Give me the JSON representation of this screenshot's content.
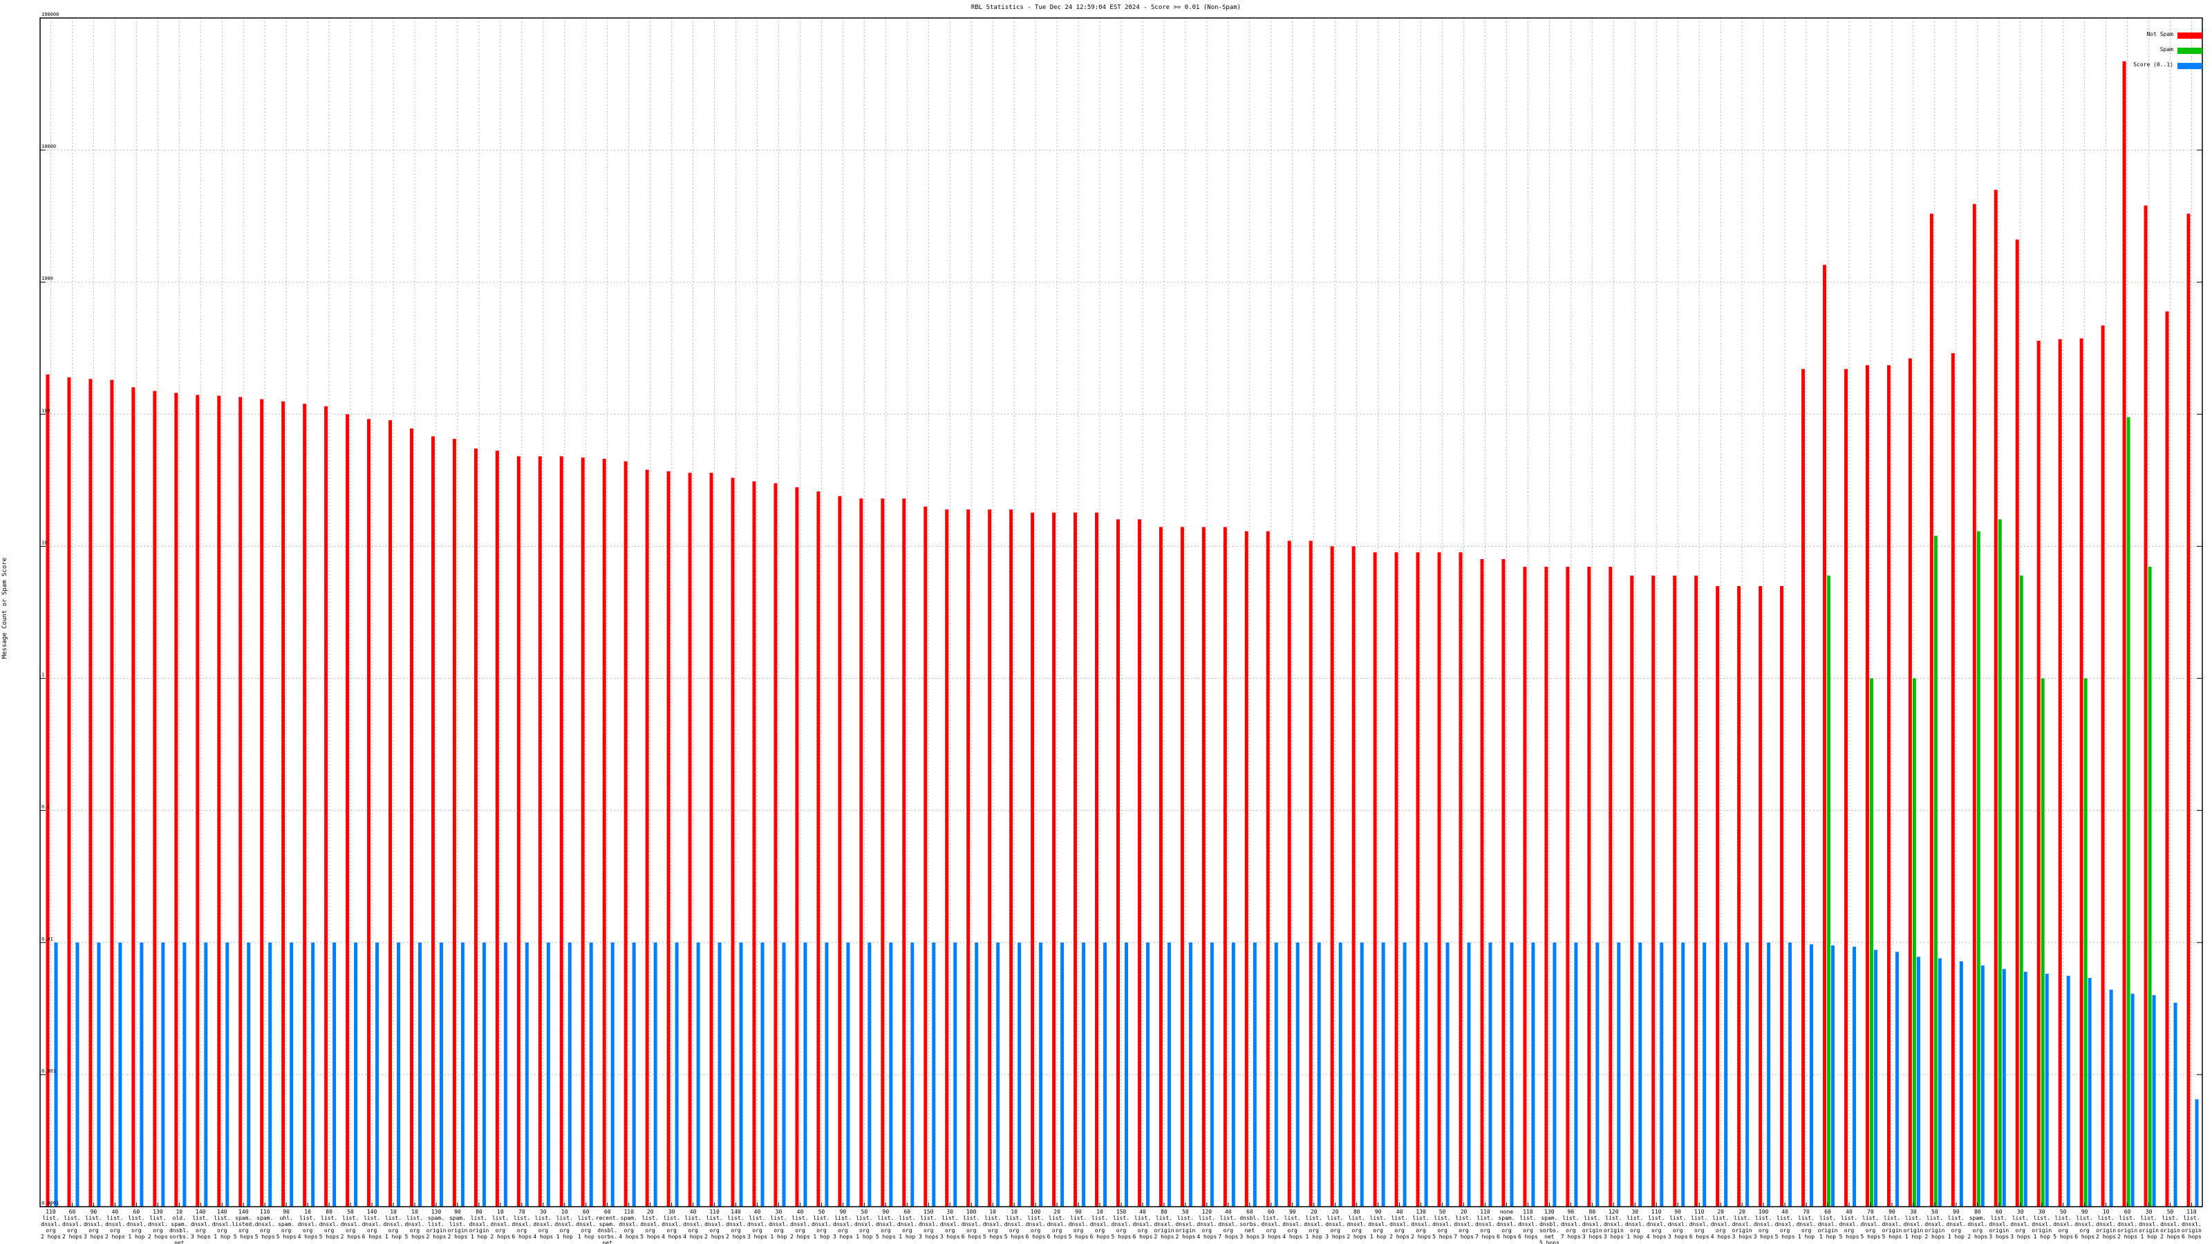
{
  "chart_data": {
    "type": "bar",
    "title": "RBL Statistics - Tue Dec 24 12:59:04 EST 2024 - Score >= 0.01 (Non-Spam)",
    "ylabel": "Message Count or Spam Score",
    "xlabel": "",
    "yscale": "log",
    "ylim": [
      0.0001,
      100000
    ],
    "yticks": [
      "0.0001",
      "0.001",
      "0.01",
      "0.1",
      "1",
      "10",
      "100",
      "1000",
      "10000",
      "100000"
    ],
    "legend_position": "top-right",
    "grid": true,
    "colors": {
      "not_spam": "#ff0000",
      "spam": "#00c000",
      "score": "#0080ff"
    },
    "series": [
      {
        "name": "Not Spam",
        "color": "#ff0000",
        "values": [
          200,
          190,
          185,
          182,
          160,
          150,
          145,
          140,
          138,
          135,
          130,
          125,
          120,
          115,
          100,
          92,
          90,
          78,
          68,
          65,
          55,
          53,
          48,
          48,
          48,
          47,
          46,
          44,
          38,
          37,
          36,
          36,
          33,
          31,
          30,
          28,
          26,
          24,
          23,
          23,
          23,
          20,
          19,
          19,
          19,
          19,
          18,
          18,
          18,
          18,
          16,
          16,
          14,
          14,
          14,
          14,
          13,
          13,
          11,
          11,
          10,
          10,
          9,
          9,
          9,
          9,
          9,
          8,
          8,
          7,
          7,
          7,
          7,
          7,
          6,
          6,
          6,
          6,
          5,
          5,
          5,
          5,
          220,
          1350,
          220,
          235,
          235,
          265,
          3300,
          290,
          3900,
          5000,
          2100,
          360,
          370,
          375,
          470,
          47000,
          3800,
          600,
          3300
        ]
      },
      {
        "name": "Spam",
        "color": "#00c000",
        "values": [
          0,
          0,
          0,
          0,
          0,
          0,
          0,
          0,
          0,
          0,
          0,
          0,
          0,
          0,
          0,
          0,
          0,
          0,
          0,
          0,
          0,
          0,
          0,
          0,
          0,
          0,
          0,
          0,
          0,
          0,
          0,
          0,
          0,
          0,
          0,
          0,
          0,
          0,
          0,
          0,
          0,
          0,
          0,
          0,
          0,
          0,
          0,
          0,
          0,
          0,
          0,
          0,
          0,
          0,
          0,
          0,
          0,
          0,
          0,
          0,
          0,
          0,
          0,
          0,
          0,
          0,
          0,
          0,
          0,
          0,
          0,
          0,
          0,
          0,
          0,
          0,
          0,
          0,
          0,
          0,
          0,
          0,
          0,
          6,
          0,
          1,
          0,
          1,
          12,
          0,
          13,
          16,
          6,
          1,
          0,
          1,
          0,
          95,
          7,
          0,
          0
        ]
      },
      {
        "name": "Score (0..1)",
        "color": "#0080ff",
        "values": [
          0.01,
          0.01,
          0.01,
          0.01,
          0.01,
          0.01,
          0.01,
          0.01,
          0.01,
          0.01,
          0.01,
          0.01,
          0.01,
          0.01,
          0.01,
          0.01,
          0.01,
          0.01,
          0.01,
          0.01,
          0.01,
          0.01,
          0.01,
          0.01,
          0.01,
          0.01,
          0.01,
          0.01,
          0.01,
          0.01,
          0.01,
          0.01,
          0.01,
          0.01,
          0.01,
          0.01,
          0.01,
          0.01,
          0.01,
          0.01,
          0.01,
          0.01,
          0.01,
          0.01,
          0.01,
          0.01,
          0.01,
          0.01,
          0.01,
          0.01,
          0.01,
          0.01,
          0.01,
          0.01,
          0.01,
          0.01,
          0.01,
          0.01,
          0.01,
          0.01,
          0.01,
          0.01,
          0.01,
          0.01,
          0.01,
          0.01,
          0.01,
          0.01,
          0.01,
          0.01,
          0.01,
          0.01,
          0.01,
          0.01,
          0.01,
          0.01,
          0.01,
          0.01,
          0.01,
          0.01,
          0.01,
          0.01,
          0.0097,
          0.0095,
          0.0093,
          0.0088,
          0.0085,
          0.0078,
          0.0076,
          0.0072,
          0.0067,
          0.0063,
          0.006,
          0.0058,
          0.0056,
          0.0054,
          0.0044,
          0.0041,
          0.004,
          0.0035,
          0.00065
        ]
      }
    ],
    "categories": [
      [
        "110",
        "list.",
        "dnsxl.",
        "org",
        "2 hops"
      ],
      [
        "60",
        "list.",
        "dnsxl.",
        "org",
        "2 hops"
      ],
      [
        "90",
        "list.",
        "dnsxl.",
        "org",
        "3 hops"
      ],
      [
        "40",
        "list.",
        "dnsxl.",
        "org",
        "2 hops"
      ],
      [
        "60",
        "list.",
        "dnsxl.",
        "org",
        "1 hop"
      ],
      [
        "130",
        "list.",
        "dnsxl.",
        "org",
        "2 hops"
      ],
      [
        "10",
        "old.",
        "spam.",
        "dnsbl.",
        "sorbs.",
        "net",
        "6 hops"
      ],
      [
        "140",
        "list.",
        "dnsxl.",
        "org",
        "3 hops"
      ],
      [
        "140",
        "list.",
        "dnsxl.",
        "org",
        "1 hop"
      ],
      [
        "140",
        "spam.",
        "listed.",
        "org",
        "5 hops"
      ],
      [
        "110",
        "spam.",
        "dnsxl.",
        "org",
        "5 hops"
      ],
      [
        "90",
        "uhl.",
        "spam.",
        "org",
        "5 hops"
      ],
      [
        "10",
        "list.",
        "dnsxl.",
        "org",
        "4 hops"
      ],
      [
        "80",
        "list.",
        "dnsxl.",
        "org",
        "5 hops"
      ],
      [
        "50",
        "list.",
        "dnsxl.",
        "org",
        "2 hops"
      ],
      [
        "140",
        "list.",
        "dnsxl.",
        "org",
        "6 hops"
      ],
      [
        "10",
        "list.",
        "dnsxl.",
        "org",
        "1 hop"
      ],
      [
        "10",
        "list.",
        "dnsxl.",
        "org",
        "5 hops"
      ],
      [
        "130",
        "spam.",
        "list.",
        "origin",
        "2 hops"
      ],
      [
        "90",
        "spam.",
        "list.",
        "origin",
        "2 hops"
      ],
      [
        "80",
        "list.",
        "dnsxl.",
        "origin",
        "1 hop"
      ],
      [
        "10",
        "list.",
        "dnsxl.",
        "org",
        "2 hops"
      ],
      [
        "70",
        "list.",
        "dnsxl.",
        "org",
        "6 hops"
      ],
      [
        "30",
        "list.",
        "dnsxl.",
        "org",
        "4 hops"
      ],
      [
        "10",
        "list.",
        "dnsxl.",
        "org",
        "1 hop"
      ],
      [
        "60",
        "list.",
        "dnsxl.",
        "org",
        "1 hop"
      ],
      [
        "60",
        "recent.",
        "spam.",
        "dnsbl.",
        "sorbs.",
        "net",
        "6 hops"
      ],
      [
        "110",
        "spam.",
        "dnsxl.",
        "org",
        "4 hops"
      ],
      [
        "20",
        "list.",
        "dnsxl.",
        "org",
        "5 hops"
      ],
      [
        "30",
        "list.",
        "dnsxl.",
        "org",
        "4 hops"
      ],
      [
        "40",
        "list.",
        "dnsxl.",
        "org",
        "4 hops"
      ],
      [
        "110",
        "list.",
        "dnsxl.",
        "org",
        "2 hops"
      ],
      [
        "140",
        "list.",
        "dnsxl.",
        "org",
        "2 hops"
      ],
      [
        "40",
        "list.",
        "dnsxl.",
        "org",
        "3 hops"
      ],
      [
        "30",
        "list.",
        "dnsxl.",
        "org",
        "1 hop"
      ],
      [
        "40",
        "list.",
        "dnsxl.",
        "org",
        "2 hops"
      ],
      [
        "50",
        "list.",
        "dnsxl.",
        "org",
        "1 hop"
      ],
      [
        "90",
        "list.",
        "dnsxl.",
        "org",
        "3 hops"
      ],
      [
        "50",
        "list.",
        "dnsxl.",
        "org",
        "1 hop"
      ],
      [
        "90",
        "list.",
        "dnsxl.",
        "org",
        "5 hops"
      ],
      [
        "60",
        "list.",
        "dnsxl.",
        "org",
        "1 hop"
      ],
      [
        "150",
        "list.",
        "dnsxl.",
        "org",
        "3 hops"
      ],
      [
        "30",
        "list.",
        "dnsxl.",
        "org",
        "3 hops"
      ],
      [
        "100",
        "list.",
        "dnsxl.",
        "org",
        "6 hops"
      ],
      [
        "10",
        "list.",
        "dnsxl.",
        "org",
        "5 hops"
      ],
      [
        "10",
        "list.",
        "dnsxl.",
        "org",
        "5 hops"
      ],
      [
        "100",
        "list.",
        "dnsxl.",
        "org",
        "6 hops"
      ],
      [
        "20",
        "list.",
        "dnsxl.",
        "org",
        "6 hops"
      ],
      [
        "90",
        "list.",
        "dnsxl.",
        "org",
        "5 hops"
      ],
      [
        "10",
        "list.",
        "dnsxl.",
        "org",
        "6 hops"
      ],
      [
        "150",
        "list.",
        "dnsxl.",
        "org",
        "5 hops"
      ],
      [
        "40",
        "list.",
        "dnsxl.",
        "org",
        "6 hops"
      ],
      [
        "80",
        "list.",
        "dnsxl.",
        "origin",
        "2 hops"
      ],
      [
        "50",
        "list.",
        "dnsxl.",
        "origin",
        "2 hops"
      ],
      [
        "120",
        "list.",
        "dnsxl.",
        "org",
        "4 hops"
      ],
      [
        "40",
        "list.",
        "dnsxl.",
        "org",
        "7 hops"
      ],
      [
        "60",
        "dnsbl.",
        "sorbs.",
        "net",
        "3 hops"
      ],
      [
        "60",
        "list.",
        "dnsxl.",
        "org",
        "3 hops"
      ],
      [
        "90",
        "list.",
        "dnsxl.",
        "org",
        "4 hops"
      ],
      [
        "20",
        "list.",
        "dnsxl.",
        "org",
        "1 hop"
      ],
      [
        "20",
        "list.",
        "dnsxl.",
        "org",
        "3 hops"
      ],
      [
        "80",
        "list.",
        "dnsxl.",
        "org",
        "2 hops"
      ],
      [
        "90",
        "list.",
        "dnsxl.",
        "org",
        "1 hop"
      ],
      [
        "40",
        "list.",
        "dnsxl.",
        "org",
        "2 hops"
      ],
      [
        "130",
        "list.",
        "dnsxl.",
        "org",
        "2 hops"
      ],
      [
        "50",
        "list.",
        "dnsxl.",
        "org",
        "5 hops"
      ],
      [
        "20",
        "list.",
        "dnsxl.",
        "org",
        "7 hops"
      ],
      [
        "110",
        "list.",
        "dnsxl.",
        "org",
        "7 hops"
      ],
      [
        "none",
        "spam.",
        "dnsxl.",
        "org",
        "6 hops"
      ],
      [
        "110",
        "list.",
        "dnsxl.",
        "org",
        "6 hops"
      ],
      [
        "130",
        "spam.",
        "dnsbl.",
        "sorbs.",
        "net",
        "5 hops"
      ],
      [
        "90",
        "list.",
        "dnsxl.",
        "org",
        "7 hops"
      ],
      [
        "80",
        "list.",
        "dnsxl.",
        "origin",
        "3 hops"
      ],
      [
        "120",
        "list.",
        "dnsxl.",
        "origin",
        "3 hops"
      ],
      [
        "30",
        "list.",
        "dnsxl.",
        "org",
        "1 hop"
      ],
      [
        "110",
        "list.",
        "dnsxl.",
        "org",
        "4 hops"
      ],
      [
        "90",
        "list.",
        "dnsxl.",
        "org",
        "3 hops"
      ],
      [
        "110",
        "list.",
        "dnsxl.",
        "org",
        "6 hops"
      ],
      [
        "20",
        "list.",
        "dnsxl.",
        "org",
        "4 hops"
      ],
      [
        "20",
        "list.",
        "dnsxl.",
        "origin",
        "3 hops"
      ],
      [
        "100",
        "list.",
        "dnsxl.",
        "org",
        "3 hops"
      ],
      [
        "40",
        "list.",
        "dnsxl.",
        "org",
        "5 hops"
      ],
      [
        "70",
        "list.",
        "dnsxl.",
        "org",
        "1 hop"
      ],
      [
        "60",
        "list.",
        "dnsxl.",
        "origin",
        "1 hop"
      ],
      [
        "40",
        "list.",
        "dnsxl.",
        "org",
        "5 hops"
      ],
      [
        "70",
        "list.",
        "dnsxl.",
        "org",
        "5 hops"
      ],
      [
        "90",
        "list.",
        "dnsxl.",
        "origin",
        "5 hops"
      ],
      [
        "30",
        "list.",
        "dnsxl.",
        "origin",
        "1 hop"
      ],
      [
        "50",
        "list.",
        "dnsxl.",
        "origin",
        "2 hops"
      ],
      [
        "90",
        "list.",
        "dnsxl.",
        "org",
        "1 hop"
      ],
      [
        "80",
        "spam.",
        "dnsxl.",
        "org",
        "2 hops"
      ],
      [
        "60",
        "list.",
        "dnsxl.",
        "origin",
        "3 hops"
      ],
      [
        "30",
        "list.",
        "dnsxl.",
        "org",
        "3 hops"
      ],
      [
        "30",
        "list.",
        "dnsxl.",
        "origin",
        "1 hop"
      ],
      [
        "50",
        "list.",
        "dnsxl.",
        "org",
        "5 hops"
      ],
      [
        "90",
        "list.",
        "dnsxl.",
        "org",
        "6 hops"
      ],
      [
        "10",
        "list.",
        "dnsxl.",
        "origin",
        "2 hops"
      ],
      [
        "60",
        "list.",
        "dnsxl.",
        "origin",
        "2 hops"
      ],
      [
        "30",
        "list.",
        "dnsxl.",
        "origin",
        "1 hop"
      ],
      [
        "50",
        "list.",
        "dnsxl.",
        "origin",
        "2 hops"
      ],
      [
        "110",
        "list.",
        "dnsxl.",
        "origin",
        "6 hops"
      ]
    ]
  }
}
